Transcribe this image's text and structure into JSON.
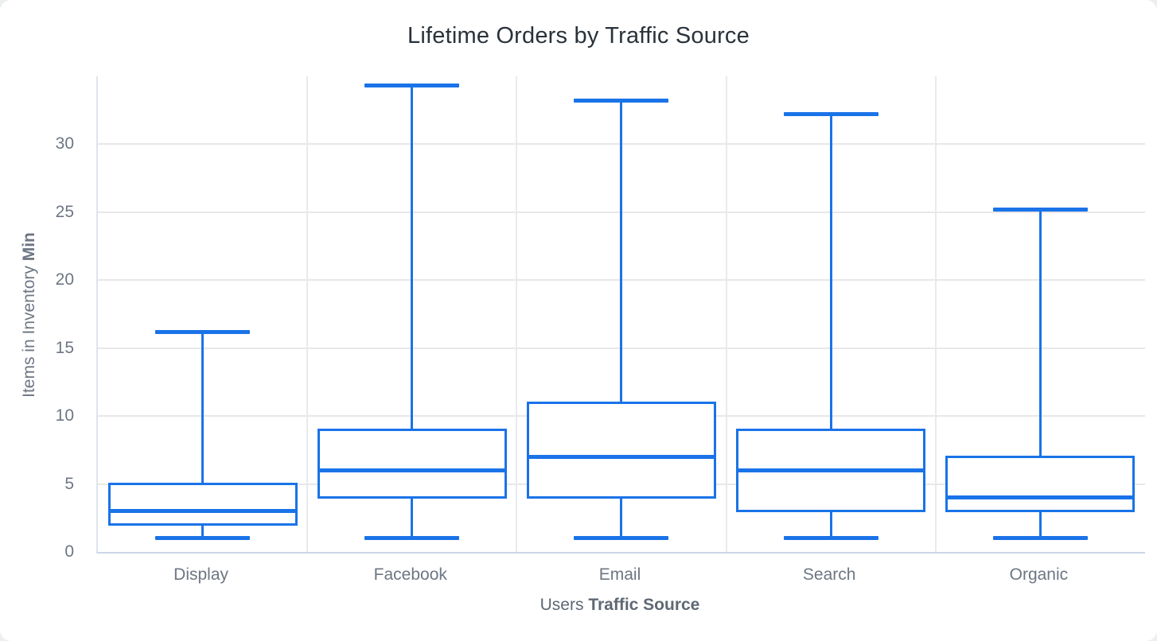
{
  "title": "Lifetime Orders by Traffic Source",
  "y_axis": {
    "title_regular": "Items in Inventory ",
    "title_bold": "Min",
    "tick_labels": [
      "0",
      "5",
      "10",
      "15",
      "20",
      "25",
      "30"
    ]
  },
  "x_axis": {
    "title_regular": "Users ",
    "title_bold": "Traffic Source"
  },
  "chart_data": {
    "type": "boxplot",
    "title": "Lifetime Orders by Traffic Source",
    "xlabel": "Users Traffic Source",
    "ylabel": "Items in Inventory Min",
    "ylim": [
      0,
      35
    ],
    "yticks": [
      0,
      5,
      10,
      15,
      20,
      25,
      30
    ],
    "grid": true,
    "legend": "none",
    "categories": [
      "Display",
      "Facebook",
      "Email",
      "Search",
      "Organic"
    ],
    "series": [
      {
        "category": "Display",
        "min": 1,
        "q1": 2,
        "median": 3,
        "q3": 5,
        "max": 16.2
      },
      {
        "category": "Facebook",
        "min": 1,
        "q1": 4,
        "median": 6,
        "q3": 9,
        "max": 34.3
      },
      {
        "category": "Email",
        "min": 1,
        "q1": 4,
        "median": 7,
        "q3": 11,
        "max": 33.2
      },
      {
        "category": "Search",
        "min": 1,
        "q1": 3,
        "median": 6,
        "q3": 9,
        "max": 32.2
      },
      {
        "category": "Organic",
        "min": 1,
        "q1": 3,
        "median": 4,
        "q3": 7,
        "max": 25.2
      }
    ]
  },
  "colors": {
    "box_stroke": "#1a73e8",
    "gridline": "#e8e8e8",
    "separator": "#e8eaed",
    "axis_border": "#ccd6e8",
    "title_text": "#2a323a",
    "tick_text": "#6d7683",
    "axis_title_text": "#5f6873"
  }
}
